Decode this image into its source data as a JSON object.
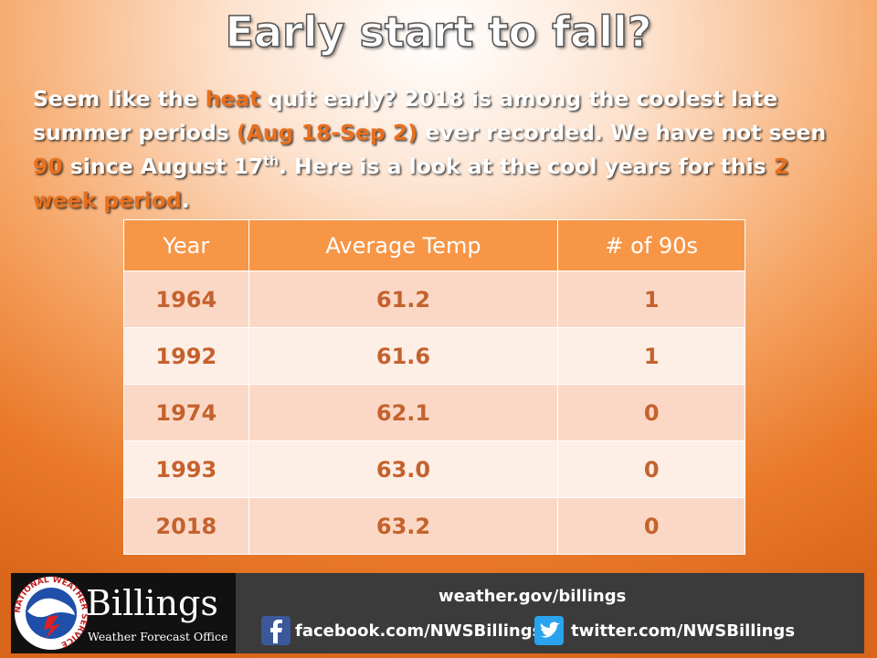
{
  "title": "Early start to fall?",
  "intro": [
    {
      "text": "Seem like the ",
      "style": "plain"
    },
    {
      "text": "heat",
      "style": "highlight"
    },
    {
      "text": " quit early? 2018 is among the coolest late summer periods ",
      "style": "plain"
    },
    {
      "text": "(Aug 18-Sep 2)",
      "style": "highlight"
    },
    {
      "text": " ever recorded. We have not seen ",
      "style": "plain"
    },
    {
      "text": "90",
      "style": "highlight"
    },
    {
      "text": " since August 17",
      "style": "plain"
    },
    {
      "text": "th",
      "style": "sup"
    },
    {
      "text": ". Here is a look at the cool years for this ",
      "style": "plain"
    },
    {
      "text": "2 week period",
      "style": "highlight"
    },
    {
      "text": ".",
      "style": "plain"
    }
  ],
  "table": {
    "headers": [
      "Year",
      "Average Temp",
      "# of 90s"
    ],
    "rows": [
      [
        "1964",
        "61.2",
        "1"
      ],
      [
        "1992",
        "61.6",
        "1"
      ],
      [
        "1974",
        "62.1",
        "0"
      ],
      [
        "1993",
        "63.0",
        "0"
      ],
      [
        "2018",
        "63.2",
        "0"
      ]
    ]
  },
  "footer": {
    "logo_text": "NATIONAL WEATHER SERVICE",
    "office": "Billings",
    "office_subtitle": "Weather Forecast Office",
    "website": "weather.gov/billings",
    "facebook": "facebook.com/NWSBillings",
    "twitter": "twitter.com/NWSBillings"
  }
}
